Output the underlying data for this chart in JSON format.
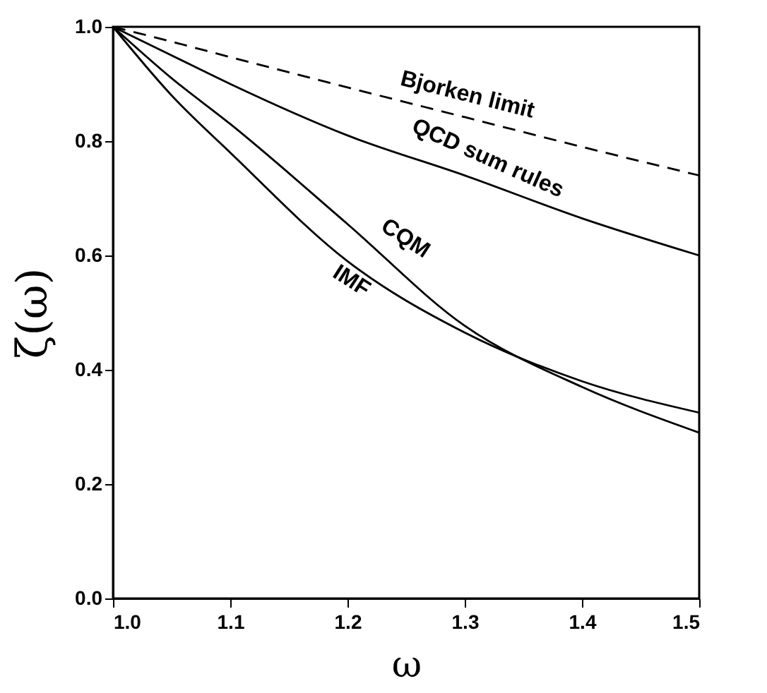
{
  "chart_data": {
    "type": "line",
    "xlabel": "ω",
    "ylabel": "ζ(ω)",
    "x": [
      1.0,
      1.05,
      1.1,
      1.2,
      1.3,
      1.4,
      1.5
    ],
    "series": [
      {
        "name": "Bjorken limit",
        "color": "#000000",
        "line_style": "dashed",
        "values": [
          1.0,
          0.974,
          0.947,
          0.894,
          0.842,
          0.79,
          0.74
        ]
      },
      {
        "name": "QCD sum rules",
        "color": "#000000",
        "line_style": "solid",
        "values": [
          1.0,
          0.95,
          0.9,
          0.81,
          0.74,
          0.665,
          0.6
        ]
      },
      {
        "name": "CQM",
        "color": "#000000",
        "line_style": "solid",
        "values": [
          1.0,
          0.91,
          0.83,
          0.655,
          0.477,
          0.37,
          0.29
        ]
      },
      {
        "name": "IMF",
        "color": "#000000",
        "line_style": "solid",
        "values": [
          1.0,
          0.88,
          0.78,
          0.59,
          0.465,
          0.38,
          0.325
        ]
      }
    ],
    "xlim": [
      1.0,
      1.5
    ],
    "ylim": [
      0.0,
      1.0
    ],
    "xticks": [
      {
        "value": 1.0,
        "label": "1.0"
      },
      1.1,
      1.2,
      1.3,
      1.4,
      1.5
    ],
    "yticks": [
      {
        "value": 0,
        "label": "0.0"
      },
      0.2,
      0.4,
      0.6,
      0.8,
      {
        "value": 1,
        "label": "1.0"
      }
    ],
    "grid": false,
    "legend": false,
    "marker": "none"
  }
}
